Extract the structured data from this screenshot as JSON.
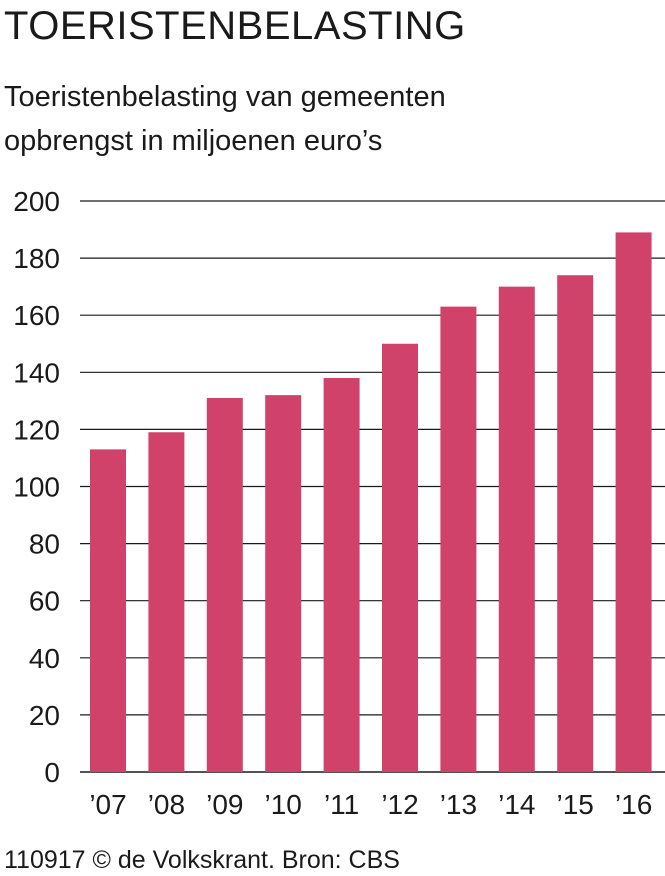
{
  "header": {
    "title": "TOERISTENBELASTING",
    "subtitle_line1": "Toeristenbelasting van gemeenten",
    "subtitle_line2": "opbrengst in miljoenen euro’s"
  },
  "footer": {
    "credit": "110917 © de Volkskrant. Bron: CBS"
  },
  "colors": {
    "bar": "#d0426a",
    "grid": "#1a1a1a"
  },
  "chart_data": {
    "type": "bar",
    "title": "TOERISTENBELASTING",
    "subtitle": "Toeristenbelasting van gemeenten opbrengst in miljoenen euro’s",
    "categories": [
      "’07",
      "’08",
      "’09",
      "’10",
      "’11",
      "’12",
      "’13",
      "’14",
      "’15",
      "’16"
    ],
    "values": [
      113,
      119,
      131,
      132,
      138,
      150,
      163,
      170,
      174,
      189
    ],
    "yticks": [
      0,
      20,
      40,
      60,
      80,
      100,
      120,
      140,
      160,
      180,
      200
    ],
    "ylim": [
      0,
      200
    ],
    "grid": true,
    "legend": false
  }
}
